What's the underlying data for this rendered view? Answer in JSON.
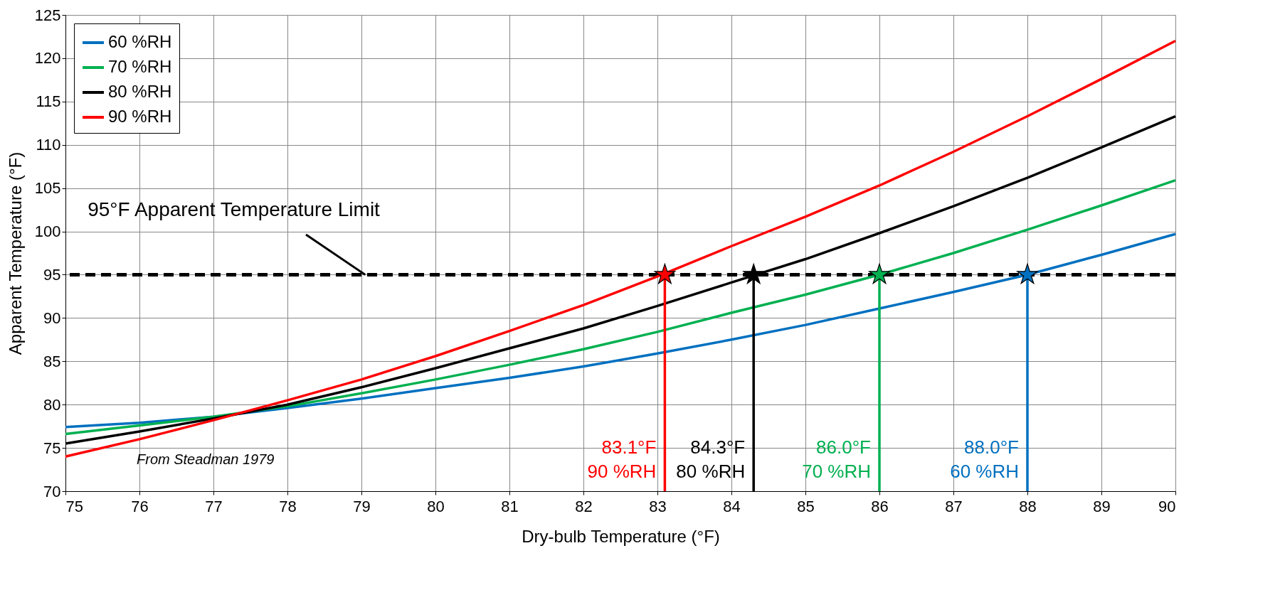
{
  "chart_data": {
    "type": "line",
    "xlabel": "Dry-bulb Temperature (°F)",
    "ylabel": "Apparent Temperature (°F)",
    "xlim": [
      75,
      90
    ],
    "xticks": [
      75,
      76,
      77,
      78,
      79,
      80,
      81,
      82,
      83,
      84,
      85,
      86,
      87,
      88,
      89,
      90
    ],
    "ylim": [
      70,
      125
    ],
    "yticks": [
      70,
      75,
      80,
      85,
      90,
      95,
      100,
      105,
      110,
      115,
      120,
      125
    ],
    "grid": true,
    "legend": "top left",
    "marker": "none",
    "line_style": "solid",
    "series": [
      {
        "name": "60 %RH",
        "color": "#0070c0",
        "x": [
          75,
          76,
          77,
          78,
          79,
          80,
          81,
          82,
          83,
          84,
          85,
          86,
          87,
          88,
          89,
          90
        ],
        "values": [
          77.4,
          77.9,
          78.6,
          79.6,
          80.7,
          81.9,
          83.1,
          84.4,
          85.9,
          87.5,
          89.2,
          91.1,
          93.0,
          95.0,
          97.3,
          99.7
        ]
      },
      {
        "name": "70 %RH",
        "color": "#00b050",
        "x": [
          75,
          76,
          77,
          78,
          79,
          80,
          81,
          82,
          83,
          84,
          85,
          86,
          87,
          88,
          89,
          90
        ],
        "values": [
          76.6,
          77.6,
          78.6,
          79.8,
          81.3,
          82.9,
          84.6,
          86.4,
          88.4,
          90.6,
          92.7,
          95.0,
          97.5,
          100.2,
          103.0,
          105.9
        ]
      },
      {
        "name": "80 %RH",
        "color": "#000000",
        "x": [
          75,
          76,
          77,
          78,
          79,
          80,
          81,
          82,
          83,
          84,
          85,
          86,
          87,
          88,
          89,
          90
        ],
        "values": [
          75.5,
          76.9,
          78.4,
          80.0,
          82.0,
          84.2,
          86.5,
          88.8,
          91.4,
          94.1,
          96.8,
          99.8,
          102.9,
          106.2,
          109.7,
          113.3
        ]
      },
      {
        "name": "90 %RH",
        "color": "#ff0000",
        "x": [
          75,
          76,
          77,
          78,
          79,
          80,
          81,
          82,
          83,
          84,
          85,
          86,
          87,
          88,
          89,
          90
        ],
        "values": [
          74.0,
          76.0,
          78.2,
          80.5,
          82.9,
          85.6,
          88.5,
          91.5,
          94.8,
          98.3,
          101.7,
          105.3,
          109.2,
          113.3,
          117.6,
          122.0
        ]
      },
      {
        "type": "line",
        "color": "#ff0000",
        "x": [
          83.1,
          83.1
        ],
        "values": [
          70,
          95
        ]
      },
      {
        "type": "line",
        "color": "#000000",
        "x": [
          84.3,
          84.3
        ],
        "values": [
          70,
          95
        ]
      },
      {
        "type": "line",
        "color": "#00b050",
        "x": [
          86.0,
          86.0
        ],
        "values": [
          70,
          95
        ]
      },
      {
        "type": "line",
        "color": "#0070c0",
        "x": [
          88.0,
          88.0
        ],
        "values": [
          70,
          95
        ]
      },
      {
        "type": "scatter",
        "marker": "star",
        "colors": [
          "#ff0000",
          "#000000",
          "#00b050",
          "#0070c0"
        ],
        "x": [
          83.1,
          84.3,
          86.0,
          88.0
        ],
        "values": [
          95,
          95,
          95,
          95
        ]
      }
    ],
    "ref_lines": [
      {
        "axis": "y",
        "value": 95,
        "label": "95°F Apparent Temperature Limit",
        "color": "#000000",
        "line_style": "dashed"
      }
    ],
    "annotations": [
      {
        "text": "83.1°F\n90 %RH",
        "x": 83.1,
        "y": 75
      },
      {
        "text": "84.3°F\n80 %RH",
        "x": 84.3,
        "y": 75
      },
      {
        "text": "86.0°F\n70 %RH",
        "x": 86.0,
        "y": 75
      },
      {
        "text": "88.0°F\n60 %RH",
        "x": 88.0,
        "y": 75
      },
      "From Steadman 1979"
    ]
  }
}
